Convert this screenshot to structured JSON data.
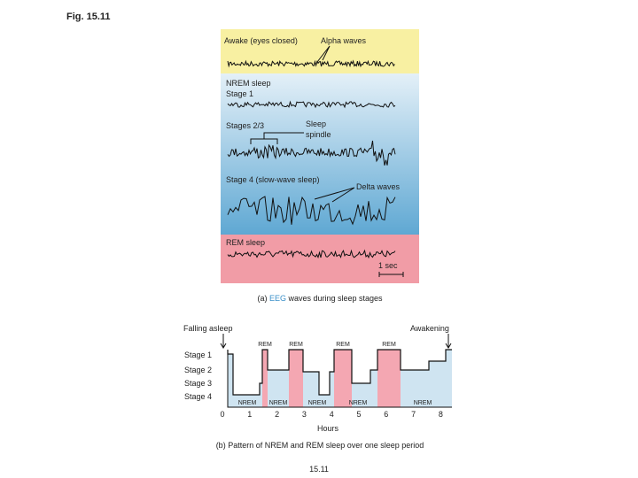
{
  "figure_label": "Fig. 15.11",
  "panel_a": {
    "awake": {
      "label": "Awake (eyes closed)",
      "annotation": "Alpha waves"
    },
    "stage1": {
      "group": "NREM sleep",
      "label": "Stage 1"
    },
    "stage23": {
      "label": "Stages 2/3",
      "annotation_lines": [
        "Sleep",
        "spindle"
      ]
    },
    "stage4": {
      "label": "Stage 4 (slow-wave sleep)",
      "annotation": "Delta waves"
    },
    "rem": {
      "label": "REM sleep"
    },
    "scale": "1 sec",
    "caption_prefix": "(a) ",
    "caption_highlight": "EEG",
    "caption_rest": " waves during sleep stages"
  },
  "panel_b": {
    "start_label": "Falling asleep",
    "end_label": "Awakening",
    "stage_labels": [
      "Stage 1",
      "Stage 2",
      "Stage 3",
      "Stage 4"
    ],
    "rem_labels": [
      "REM",
      "REM",
      "REM",
      "REM"
    ],
    "nrem_labels": [
      "NREM",
      "NREM",
      "NREM",
      "NREM",
      "NREM"
    ],
    "hour_ticks": [
      "0",
      "1",
      "2",
      "3",
      "4",
      "5",
      "6",
      "7",
      "8"
    ],
    "x_label": "Hours",
    "caption": "(b) Pattern of NREM and REM sleep over one sleep period"
  },
  "page_number": "15.11"
}
